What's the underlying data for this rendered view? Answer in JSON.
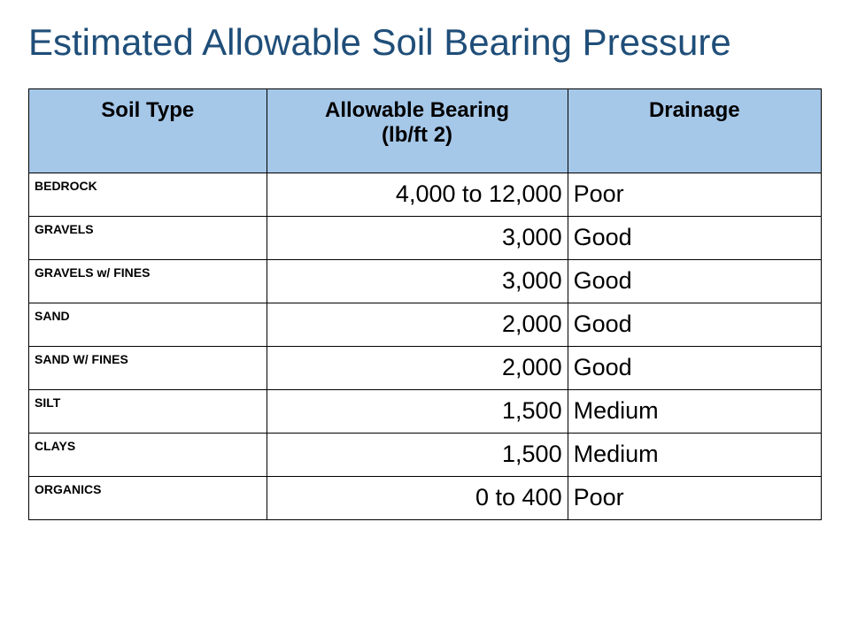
{
  "title": "Estimated Allowable Soil Bearing Pressure",
  "table": {
    "type": "table",
    "header_bg": "#a5c7e8",
    "border_color": "#000000",
    "title_color": "#1f4e79",
    "background_color": "#ffffff",
    "columns": [
      {
        "key": "soil_type",
        "label": "Soil Type",
        "sublabel": "",
        "width_pct": 30,
        "fontsize": 24,
        "fontweight": 700,
        "align": "center"
      },
      {
        "key": "allowable_bearing",
        "label": "Allowable Bearing",
        "sublabel": "(lb/ft 2)",
        "width_pct": 38,
        "fontsize": 24,
        "fontweight": 700,
        "align": "center"
      },
      {
        "key": "drainage",
        "label": "Drainage",
        "sublabel": "",
        "width_pct": 32,
        "fontsize": 24,
        "fontweight": 700,
        "align": "center"
      }
    ],
    "body_style": {
      "soil_fontsize": 14,
      "soil_fontweight": 700,
      "value_fontsize": 27,
      "value_fontweight": 400,
      "bearing_align": "right",
      "drainage_align": "left"
    },
    "rows": [
      {
        "soil_type": "BEDROCK",
        "allowable_bearing": "4,000 to 12,000",
        "drainage": "Poor"
      },
      {
        "soil_type": "GRAVELS",
        "allowable_bearing": "3,000",
        "drainage": "Good"
      },
      {
        "soil_type": "GRAVELS w/ FINES",
        "allowable_bearing": "3,000",
        "drainage": "Good"
      },
      {
        "soil_type": "SAND",
        "allowable_bearing": "2,000",
        "drainage": "Good"
      },
      {
        "soil_type": "SAND W/ FINES",
        "allowable_bearing": "2,000",
        "drainage": "Good"
      },
      {
        "soil_type": "SILT",
        "allowable_bearing": "1,500",
        "drainage": "Medium"
      },
      {
        "soil_type": "CLAYS",
        "allowable_bearing": "1,500",
        "drainage": "Medium"
      },
      {
        "soil_type": "ORGANICS",
        "allowable_bearing": "0 to 400",
        "drainage": "Poor"
      }
    ]
  }
}
